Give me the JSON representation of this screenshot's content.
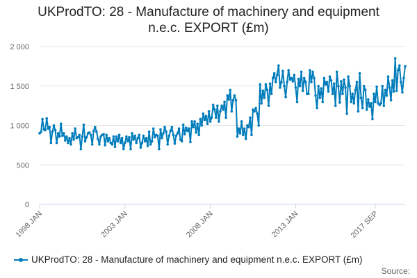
{
  "chart_data": {
    "type": "line",
    "title": "UKProdTO: 28 - Manufacture of machinery and equipment n.e.c. EXPORT (£m)",
    "xlabel": "",
    "ylabel": "",
    "ylim": [
      0,
      2000
    ],
    "yticks": [
      0,
      500,
      1000,
      1500,
      2000
    ],
    "ytick_labels": [
      "0",
      "500",
      "1 000",
      "1 500",
      "2 000"
    ],
    "x_tick_labels": [
      "1998 JAN",
      "2003 JAN",
      "2008 JAN",
      "2013 JAN",
      "2017 SEP"
    ],
    "x_tick_index": [
      0,
      60,
      120,
      180,
      236
    ],
    "grid": true,
    "legend_position": "bottom",
    "source_label": "Source:",
    "color": "#007cbb",
    "series": [
      {
        "name": "UKProdTO: 28 - Manufacture of machinery and equipment n.e.c. EXPORT (£m)",
        "start": "1998 JAN",
        "frequency": "monthly",
        "values": [
          900,
          920,
          1080,
          950,
          940,
          1090,
          960,
          980,
          780,
          920,
          1000,
          940,
          780,
          900,
          860,
          1020,
          870,
          900,
          810,
          860,
          780,
          840,
          760,
          900,
          820,
          960,
          840,
          850,
          880,
          700,
          860,
          1010,
          800,
          850,
          900,
          910,
          880,
          760,
          930,
          980,
          920,
          830,
          760,
          860,
          880,
          890,
          750,
          880,
          800,
          840,
          780,
          760,
          860,
          730,
          860,
          800,
          880,
          780,
          840,
          700,
          780,
          860,
          800,
          850,
          700,
          900,
          820,
          870,
          780,
          840,
          880,
          720,
          780,
          870,
          800,
          840,
          740,
          920,
          760,
          800,
          960,
          850,
          880,
          870,
          700,
          950,
          840,
          900,
          980,
          920,
          760,
          870,
          930,
          980,
          880,
          770,
          870,
          900,
          960,
          820,
          800,
          1010,
          890,
          970,
          930,
          960,
          790,
          1050,
          980,
          1050,
          910,
          1020,
          880,
          1080,
          1000,
          1150,
          1070,
          1120,
          1020,
          1180,
          1050,
          1100,
          1260,
          1200,
          1100,
          1250,
          1050,
          1180,
          1250,
          1200,
          1300,
          1100,
          1380,
          1330,
          1450,
          1180,
          1320,
          1380,
          1320,
          860,
          960,
          900,
          1050,
          880,
          960,
          830,
          1000,
          980,
          1100,
          880,
          1200,
          1180,
          1220,
          1150,
          1000,
          1520,
          1280,
          1440,
          1350,
          1520,
          1450,
          1250,
          1530,
          1400,
          1600,
          1660,
          1550,
          1640,
          1760,
          1480,
          1550,
          1690,
          1500,
          1360,
          1550,
          1700,
          1580,
          1600,
          1560,
          1640,
          1480,
          1300,
          1590,
          1500,
          1680,
          1440,
          1600,
          1550,
          1400,
          1400,
          1700,
          1550,
          1680,
          1600,
          1380,
          1220,
          1500,
          1350,
          1470,
          1300,
          1600,
          1520,
          1550,
          1430,
          1620,
          1570,
          1400,
          1530,
          1250,
          1680,
          1500,
          1290,
          1560,
          1400,
          1580,
          1480,
          1150,
          1620,
          1500,
          1300,
          1400,
          1280,
          1450,
          1550,
          1180,
          1660,
          1350,
          1220,
          1500,
          1450,
          1200,
          1330,
          1240,
          1280,
          1080,
          1400,
          1300,
          1490,
          1280,
          1260,
          1280,
          1500,
          1250,
          1450,
          1380,
          1620,
          1480,
          1320,
          1570,
          1430,
          1850,
          1440,
          1700,
          1760,
          1550,
          1420,
          1600,
          1750
        ]
      }
    ]
  }
}
